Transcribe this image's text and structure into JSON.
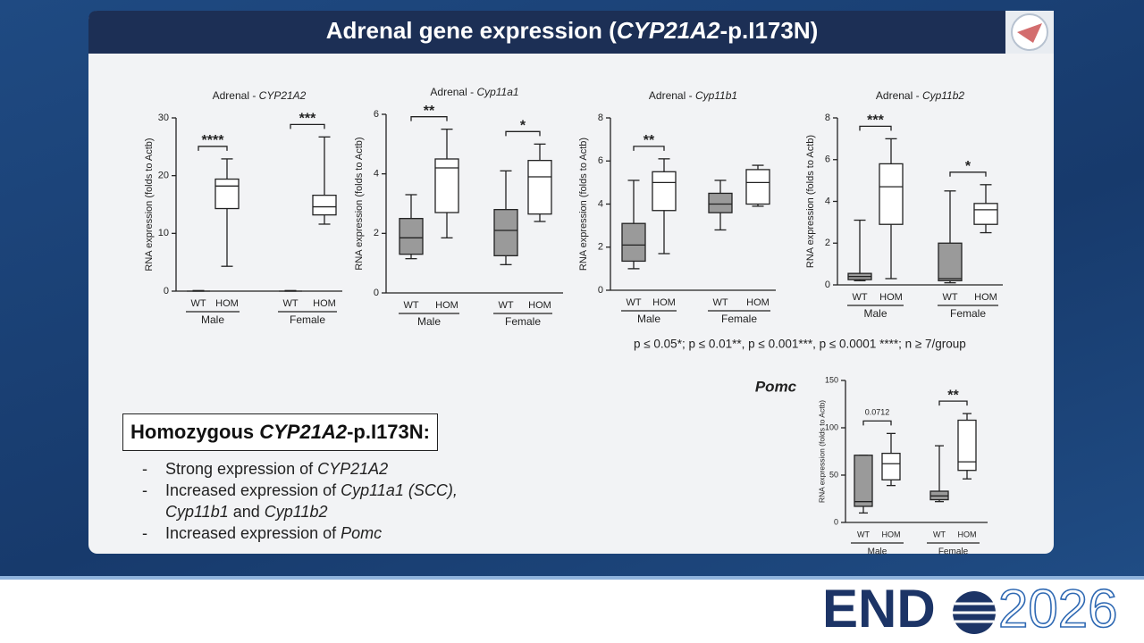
{
  "slide": {
    "title": [
      "Adrenal gene expression (",
      "CYP21A2",
      "-p.I173N)"
    ],
    "footnote": "p ≤ 0.05*; p ≤ 0.01**, p ≤ 0.001***, p ≤ 0.0001 ****; n ≥ 7/group",
    "summary": {
      "heading": [
        "Homozygous ",
        "CYP21A2",
        "-p.I173N:"
      ],
      "bullets": [
        [
          "Strong expression of ",
          "CYP21A2"
        ],
        [
          "Increased expression of ",
          "Cyp11a1 (SCC), Cyp11b1",
          " and ",
          "Cyp11b2"
        ],
        [
          "Increased expression of ",
          "Pomc"
        ]
      ]
    },
    "logo": {
      "word": "END",
      "year": "2026"
    }
  },
  "chart_data": [
    {
      "type": "box",
      "title": [
        "Adrenal - ",
        "CYP21A2"
      ],
      "y_label": "RNA expression (folds to Actb)",
      "categories": [
        "WT",
        "HOM",
        "WT",
        "HOM"
      ],
      "groups": [
        "Male",
        "Female"
      ],
      "colors": [
        "#9a9a9a",
        "#ffffff",
        "#9a9a9a",
        "#ffffff"
      ],
      "boxes": [
        {
          "min": 0,
          "q1": 0,
          "median": 0,
          "q3": 0,
          "max": 0.1
        },
        {
          "min": 4.3,
          "q1": 14.3,
          "median": 18.2,
          "q3": 19.4,
          "max": 22.9
        },
        {
          "min": 0,
          "q1": 0,
          "median": 0,
          "q3": 0,
          "max": 0.1
        },
        {
          "min": 11.6,
          "q1": 13.2,
          "median": 14.6,
          "q3": 16.6,
          "max": 26.7
        }
      ],
      "significance": [
        "****",
        "***"
      ],
      "ylim": [
        0,
        30
      ],
      "yticks": [
        0,
        10,
        20,
        30
      ]
    },
    {
      "type": "box",
      "title": [
        "Adrenal - ",
        "Cyp11a1"
      ],
      "y_label": "RNA expression (folds to Actb)",
      "categories": [
        "WT",
        "HOM",
        "WT",
        "HOM"
      ],
      "groups": [
        "Male",
        "Female"
      ],
      "colors": [
        "#9a9a9a",
        "#ffffff",
        "#9a9a9a",
        "#ffffff"
      ],
      "boxes": [
        {
          "min": 1.15,
          "q1": 1.3,
          "median": 1.85,
          "q3": 2.5,
          "max": 3.3
        },
        {
          "min": 1.85,
          "q1": 2.7,
          "median": 4.2,
          "q3": 4.5,
          "max": 5.5
        },
        {
          "min": 0.95,
          "q1": 1.25,
          "median": 2.1,
          "q3": 2.8,
          "max": 4.1
        },
        {
          "min": 2.4,
          "q1": 2.65,
          "median": 3.9,
          "q3": 4.45,
          "max": 5.0
        }
      ],
      "significance": [
        "**",
        "*"
      ],
      "ylim": [
        0,
        6
      ],
      "yticks": [
        0,
        2,
        4,
        6
      ]
    },
    {
      "type": "box",
      "title": [
        "Adrenal - ",
        "Cyp11b1"
      ],
      "y_label": "RNA expression (folds to Actb)",
      "categories": [
        "WT",
        "HOM",
        "WT",
        "HOM"
      ],
      "groups": [
        "Male",
        "Female"
      ],
      "colors": [
        "#9a9a9a",
        "#ffffff",
        "#9a9a9a",
        "#ffffff"
      ],
      "boxes": [
        {
          "min": 1.0,
          "q1": 1.35,
          "median": 2.1,
          "q3": 3.1,
          "max": 5.1
        },
        {
          "min": 1.7,
          "q1": 3.7,
          "median": 5.0,
          "q3": 5.5,
          "max": 6.1
        },
        {
          "min": 2.8,
          "q1": 3.6,
          "median": 4.0,
          "q3": 4.5,
          "max": 5.1
        },
        {
          "min": 3.9,
          "q1": 4.0,
          "median": 5.0,
          "q3": 5.6,
          "max": 5.8
        }
      ],
      "significance": [
        "**",
        null
      ],
      "ylim": [
        0,
        8
      ],
      "yticks": [
        0,
        2,
        4,
        6,
        8
      ]
    },
    {
      "type": "box",
      "title": [
        "Adrenal - ",
        "Cyp11b2"
      ],
      "y_label": "RNA expression (folds to Actb)",
      "categories": [
        "WT",
        "HOM",
        "WT",
        "HOM"
      ],
      "groups": [
        "Male",
        "Female"
      ],
      "colors": [
        "#9a9a9a",
        "#ffffff",
        "#9a9a9a",
        "#ffffff"
      ],
      "boxes": [
        {
          "min": 0.2,
          "q1": 0.25,
          "median": 0.4,
          "q3": 0.55,
          "max": 3.1
        },
        {
          "min": 0.3,
          "q1": 2.9,
          "median": 4.7,
          "q3": 5.8,
          "max": 7.0
        },
        {
          "min": 0.1,
          "q1": 0.2,
          "median": 0.3,
          "q3": 2.0,
          "max": 4.5
        },
        {
          "min": 2.5,
          "q1": 2.9,
          "median": 3.6,
          "q3": 3.9,
          "max": 4.8
        }
      ],
      "significance": [
        "***",
        "*"
      ],
      "ylim": [
        0,
        8
      ],
      "yticks": [
        0,
        2,
        4,
        6,
        8
      ]
    },
    {
      "type": "box",
      "title": "Pomc",
      "y_label": "RNA expression (folds to Actb)",
      "categories": [
        "WT",
        "HOM",
        "WT",
        "HOM"
      ],
      "groups": [
        "Male",
        "Female"
      ],
      "colors": [
        "#9a9a9a",
        "#ffffff",
        "#9a9a9a",
        "#ffffff"
      ],
      "boxes": [
        {
          "min": 10,
          "q1": 17,
          "median": 22,
          "q3": 71,
          "max": 71
        },
        {
          "min": 39,
          "q1": 45,
          "median": 62,
          "q3": 73,
          "max": 94
        },
        {
          "min": 22,
          "q1": 24,
          "median": 28,
          "q3": 33,
          "max": 81
        },
        {
          "min": 46,
          "q1": 55,
          "median": 64,
          "q3": 108,
          "max": 115
        }
      ],
      "significance": [
        "0.0712",
        "**"
      ],
      "ylim": [
        0,
        150
      ],
      "yticks": [
        0,
        50,
        100,
        150
      ]
    }
  ]
}
